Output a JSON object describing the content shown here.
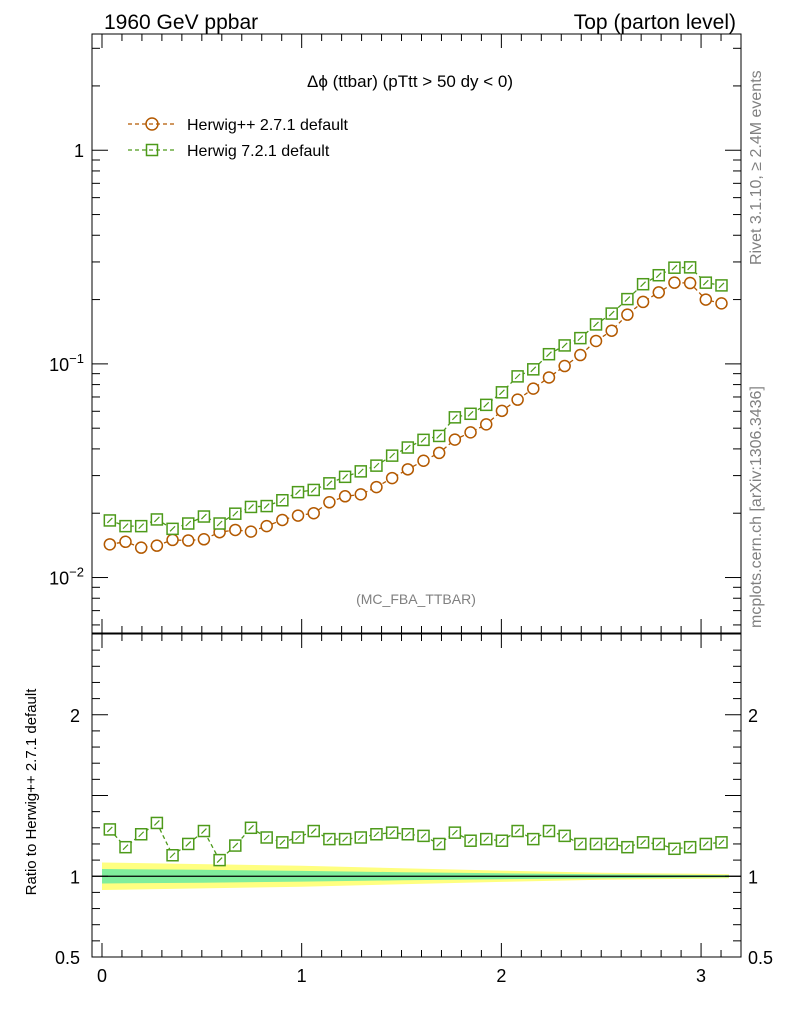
{
  "header": {
    "left": "1960 GeV ppbar",
    "right": "Top (parton level)"
  },
  "side": {
    "rivet": "Rivet 3.1.10, ≥ 2.4M events",
    "mcplots": "mcplots.cern.ch [arXiv:1306.3436]"
  },
  "chart_data": {
    "type": "scatter",
    "title": "Δϕ (ttbar) (pTtt > 50 dy < 0)",
    "analysis": "(MC_FBA_TTBAR)",
    "xlim": [
      -0.05,
      3.2
    ],
    "x_ticks": [
      "0",
      "1",
      "2",
      "3"
    ],
    "main": {
      "yscale": "log",
      "ylim": [
        0.0055,
        3.5
      ],
      "y_ticks": [
        {
          "mant": "1",
          "exp": ""
        },
        {
          "mant": "10",
          "exp": "−1"
        },
        {
          "mant": "10",
          "exp": "−2"
        }
      ]
    },
    "ratio": {
      "ylabel": "Ratio to Herwig++ 2.7.1 default",
      "ylim": [
        0.5,
        2.5
      ],
      "y_ticks": [
        "2",
        "1",
        "0.5"
      ]
    },
    "legend_position": "top-left",
    "x": [
      0.0393,
      0.1178,
      0.1963,
      0.2749,
      0.3534,
      0.432,
      0.5105,
      0.589,
      0.6676,
      0.7461,
      0.8247,
      0.9032,
      0.9817,
      1.0603,
      1.1388,
      1.2174,
      1.2959,
      1.3744,
      1.453,
      1.5315,
      1.6101,
      1.6886,
      1.7671,
      1.8457,
      1.9242,
      2.0028,
      2.0813,
      2.1598,
      2.2384,
      2.3169,
      2.3955,
      2.474,
      2.5525,
      2.6311,
      2.7096,
      2.7882,
      2.8667,
      2.9452,
      3.0238,
      3.1023
    ],
    "series": [
      {
        "name": "Herwig++ 2.7.1 default",
        "color": "#b35900",
        "marker": "circle",
        "values": [
          0.0143,
          0.0147,
          0.0138,
          0.0141,
          0.015,
          0.0149,
          0.0151,
          0.0163,
          0.0167,
          0.0164,
          0.0174,
          0.0186,
          0.0195,
          0.02,
          0.0225,
          0.024,
          0.0245,
          0.0265,
          0.0292,
          0.0321,
          0.0352,
          0.0383,
          0.0442,
          0.0478,
          0.0521,
          0.0603,
          0.068,
          0.0766,
          0.0864,
          0.0977,
          0.11,
          0.128,
          0.143,
          0.17,
          0.195,
          0.216,
          0.24,
          0.239,
          0.2,
          0.192
        ],
        "ratio": [
          1.0,
          1.0,
          1.0,
          1.0,
          1.0,
          1.0,
          1.0,
          1.0,
          1.0,
          1.0,
          1.0,
          1.0,
          1.0,
          1.0,
          1.0,
          1.0,
          1.0,
          1.0,
          1.0,
          1.0,
          1.0,
          1.0,
          1.0,
          1.0,
          1.0,
          1.0,
          1.0,
          1.0,
          1.0,
          1.0,
          1.0,
          1.0,
          1.0,
          1.0,
          1.0,
          1.0,
          1.0,
          1.0,
          1.0,
          1.0
        ]
      },
      {
        "name": "Herwig 7.2.1 default",
        "color": "#4d9a1a",
        "marker": "square",
        "values": [
          0.0185,
          0.0174,
          0.0174,
          0.0187,
          0.0169,
          0.0179,
          0.0193,
          0.0179,
          0.0199,
          0.0214,
          0.0216,
          0.023,
          0.0251,
          0.0257,
          0.0276,
          0.0296,
          0.0314,
          0.0334,
          0.0372,
          0.0406,
          0.0441,
          0.046,
          0.0562,
          0.0584,
          0.0643,
          0.0736,
          0.0874,
          0.0943,
          0.111,
          0.122,
          0.132,
          0.153,
          0.172,
          0.201,
          0.236,
          0.26,
          0.282,
          0.283,
          0.24,
          0.233
        ],
        "ratio": [
          1.29,
          1.18,
          1.26,
          1.33,
          1.13,
          1.2,
          1.28,
          1.1,
          1.19,
          1.3,
          1.24,
          1.21,
          1.24,
          1.28,
          1.23,
          1.23,
          1.24,
          1.26,
          1.27,
          1.26,
          1.25,
          1.2,
          1.27,
          1.22,
          1.23,
          1.22,
          1.28,
          1.23,
          1.28,
          1.25,
          1.2,
          1.2,
          1.2,
          1.18,
          1.21,
          1.2,
          1.17,
          1.18,
          1.2,
          1.21
        ]
      }
    ],
    "ref_band": {
      "x": [
        0.0,
        0.5,
        1.0,
        1.5,
        2.0,
        2.5,
        3.0,
        3.14
      ],
      "yellow_half": [
        0.085,
        0.075,
        0.065,
        0.05,
        0.035,
        0.022,
        0.015,
        0.013
      ],
      "green_half": [
        0.045,
        0.04,
        0.033,
        0.025,
        0.018,
        0.012,
        0.008,
        0.007
      ]
    }
  }
}
